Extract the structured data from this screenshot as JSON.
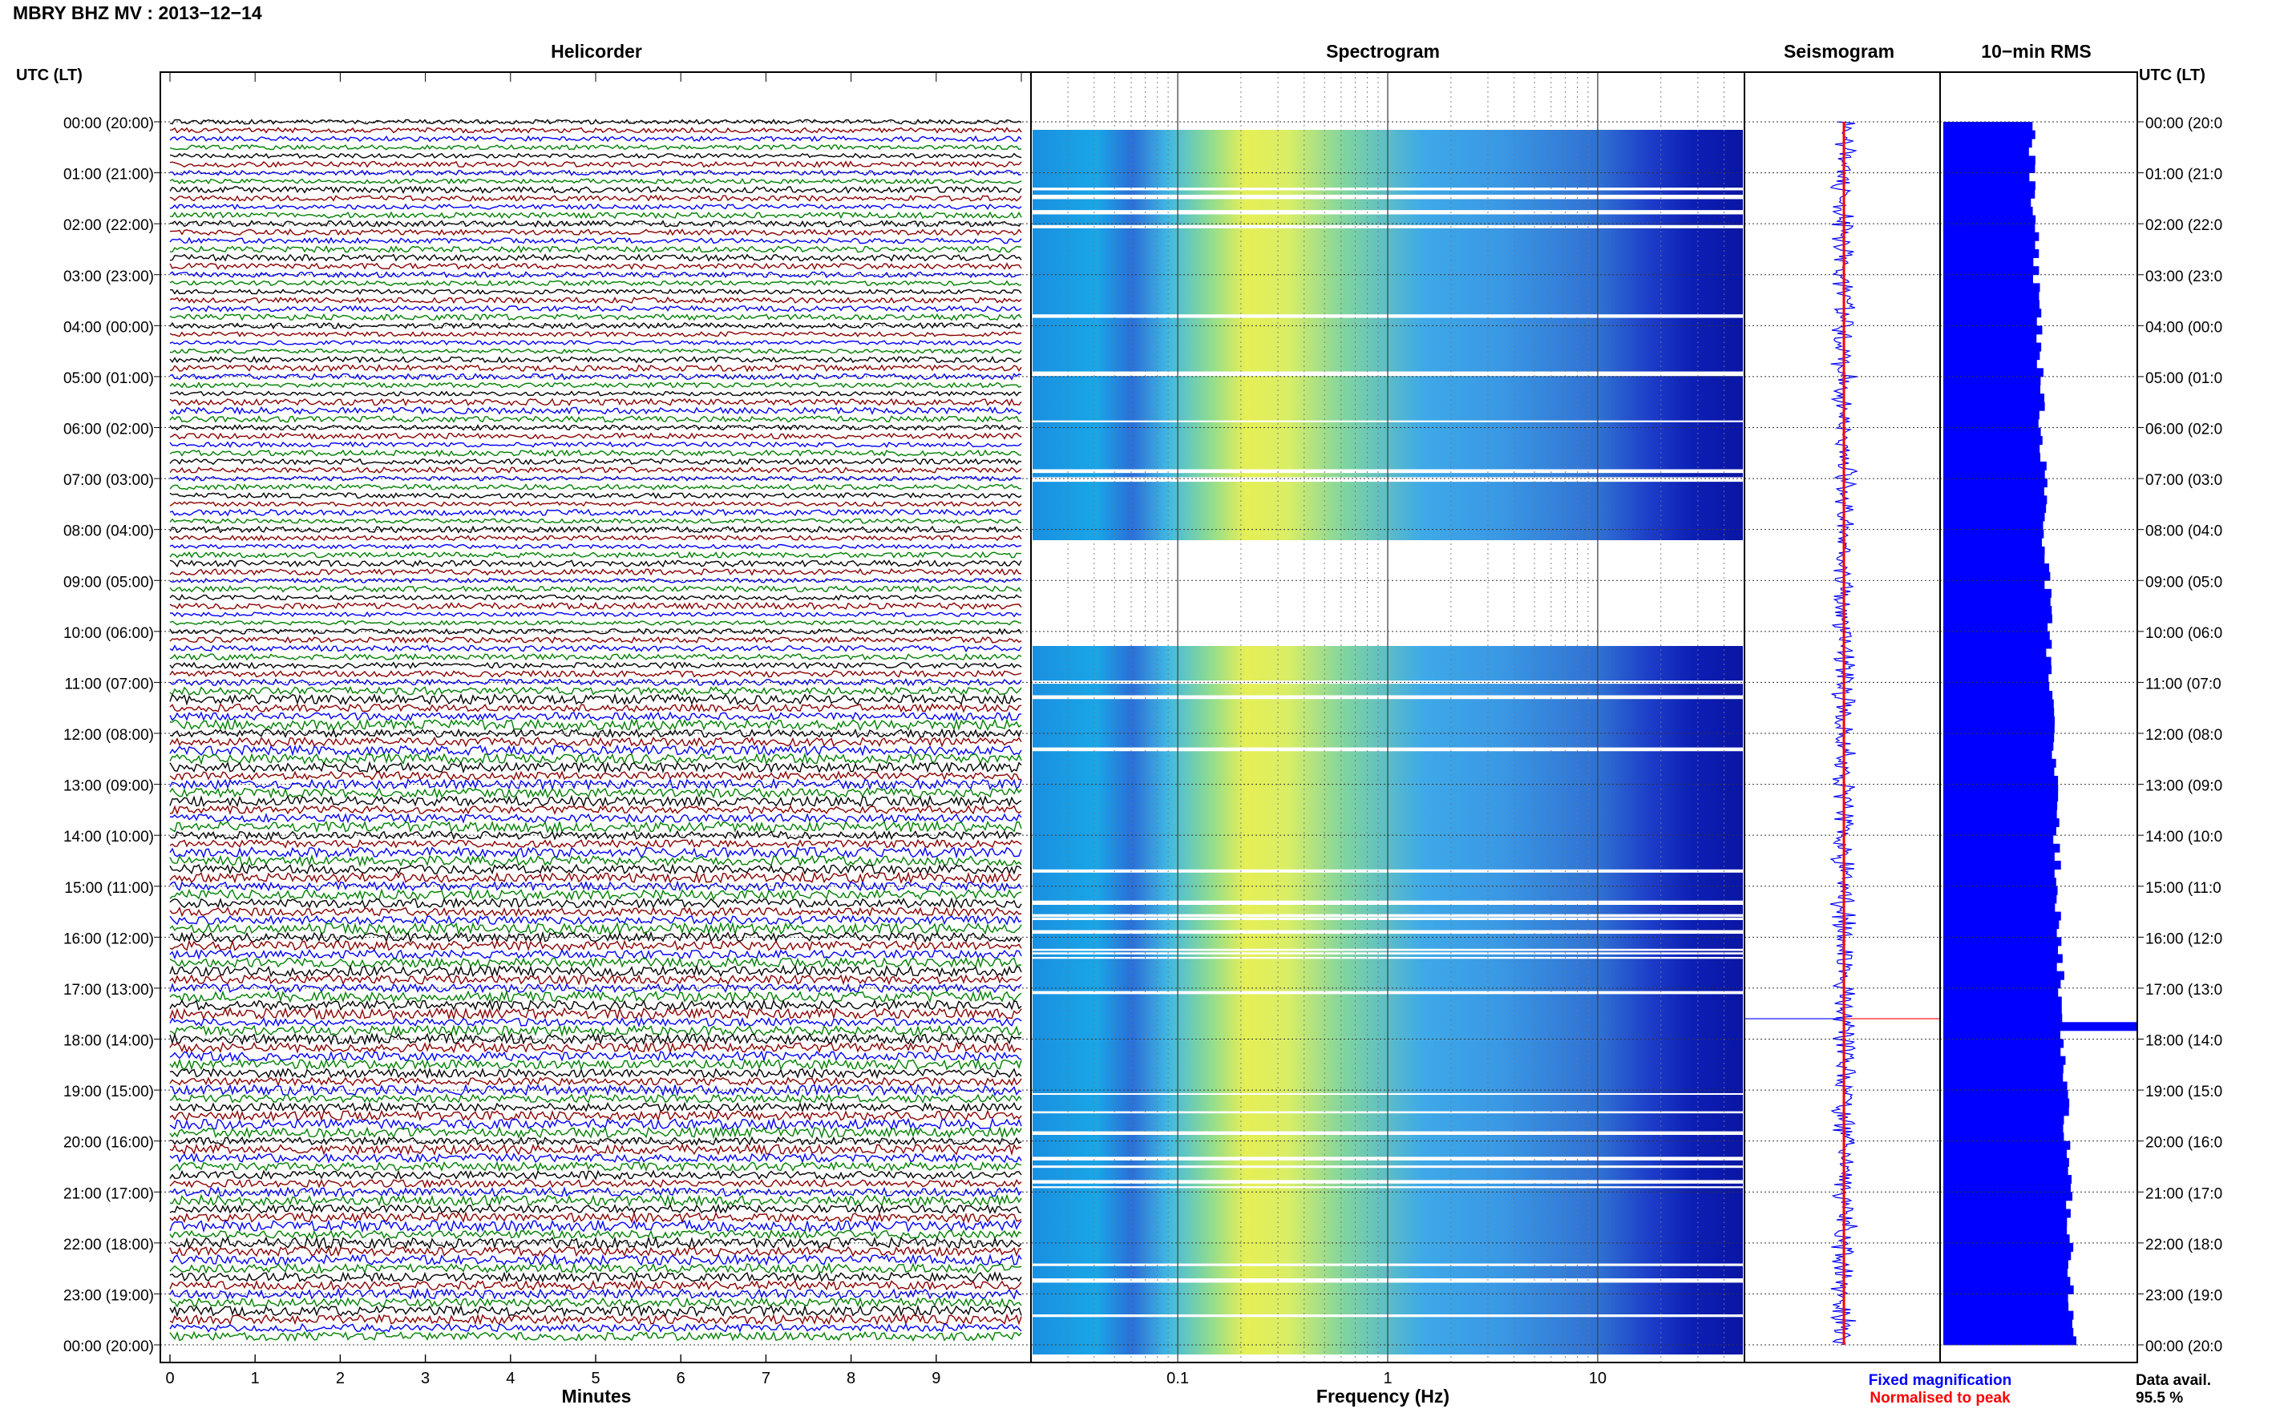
{
  "header": {
    "title": "MBRY BHZ MV : 2013−12−14"
  },
  "panels": {
    "helicorder": "Helicorder",
    "spectrogram": "Spectrogram",
    "seismogram": "Seismogram",
    "rms": "10−min RMS"
  },
  "axes": {
    "left_label": "UTC (LT)",
    "right_label": "UTC (LT)",
    "minutes_label": "Minutes",
    "frequency_label": "Frequency (Hz)"
  },
  "legend": {
    "fixed": "Fixed magnification",
    "normalised": "Normalised to peak",
    "fixed_color": "#0000ff",
    "normalised_color": "#ff0000"
  },
  "data_avail": {
    "label": "Data avail.",
    "value": "95.5 %"
  },
  "chart_data": {
    "type": "helicorder",
    "time_labels_left": [
      "00:00 (20:00)",
      "01:00 (21:00)",
      "02:00 (22:00)",
      "03:00 (23:00)",
      "04:00 (00:00)",
      "05:00 (01:00)",
      "06:00 (02:00)",
      "07:00 (03:00)",
      "08:00 (04:00)",
      "09:00 (05:00)",
      "10:00 (06:00)",
      "11:00 (07:00)",
      "12:00 (08:00)",
      "13:00 (09:00)",
      "14:00 (10:00)",
      "15:00 (11:00)",
      "16:00 (12:00)",
      "17:00 (13:00)",
      "18:00 (14:00)",
      "19:00 (15:00)",
      "20:00 (16:00)",
      "21:00 (17:00)",
      "22:00 (18:00)",
      "23:00 (19:00)",
      "00:00 (20:00)"
    ],
    "time_labels_right": [
      "00:00 (20:0",
      "01:00 (21:0",
      "02:00 (22:0",
      "03:00 (23:0",
      "04:00 (00:0",
      "05:00 (01:0",
      "06:00 (02:0",
      "07:00 (03:0",
      "08:00 (04:0",
      "09:00 (05:0",
      "10:00 (06:0",
      "11:00 (07:0",
      "12:00 (08:0",
      "13:00 (09:0",
      "14:00 (10:0",
      "15:00 (11:0",
      "16:00 (12:0",
      "17:00 (13:0",
      "18:00 (14:0",
      "19:00 (15:0",
      "20:00 (16:0",
      "21:00 (17:0",
      "22:00 (18:0",
      "23:00 (19:0",
      "00:00 (20:0"
    ],
    "minutes_ticks": [
      "0",
      "1",
      "2",
      "3",
      "4",
      "5",
      "6",
      "7",
      "8",
      "9"
    ],
    "frequency_ticks": [
      "0.1",
      "1",
      "10"
    ],
    "frequency_range_hz": [
      0.02,
      50
    ],
    "trace_colors": [
      "#000000",
      "#8b0000",
      "#0000ff",
      "#008000"
    ],
    "spectrogram_gap_hours": [
      7.9,
      10.1
    ],
    "rms_peak_hour": 17.6
  }
}
